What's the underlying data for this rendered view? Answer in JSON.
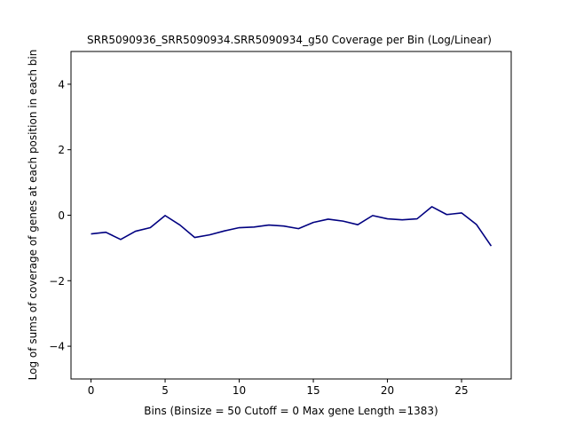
{
  "chart_data": {
    "type": "line",
    "title": "SRR5090936_SRR5090934.SRR5090934_g50 Coverage per Bin (Log/Linear)",
    "xlabel": "Bins  (Binsize = 50 Cutoff = 0 Max gene Length =1383)",
    "ylabel": "Log of sums of coverage of genes at each position in each bin",
    "xlim": [
      -1.35,
      28.35
    ],
    "ylim": [
      -5,
      5
    ],
    "xticks": [
      0,
      5,
      10,
      15,
      20,
      25
    ],
    "yticks": [
      -4,
      -2,
      0,
      2,
      4
    ],
    "xtick_labels": [
      "0",
      "5",
      "10",
      "15",
      "20",
      "25"
    ],
    "ytick_labels": [
      "−4",
      "−2",
      "0",
      "2",
      "4"
    ],
    "grid": false,
    "series": [
      {
        "color": "#000080",
        "x": [
          0,
          1,
          2,
          3,
          4,
          5,
          6,
          7,
          8,
          9,
          10,
          11,
          12,
          13,
          14,
          15,
          16,
          17,
          18,
          19,
          20,
          21,
          22,
          23,
          24,
          25,
          26,
          27
        ],
        "y": [
          -0.57,
          -0.52,
          -0.74,
          -0.49,
          -0.38,
          -0.01,
          -0.3,
          -0.68,
          -0.6,
          -0.48,
          -0.38,
          -0.36,
          -0.3,
          -0.33,
          -0.41,
          -0.22,
          -0.12,
          -0.18,
          -0.29,
          -0.01,
          -0.11,
          -0.14,
          -0.11,
          0.26,
          0.02,
          0.07,
          -0.28,
          -0.94
        ]
      }
    ]
  }
}
